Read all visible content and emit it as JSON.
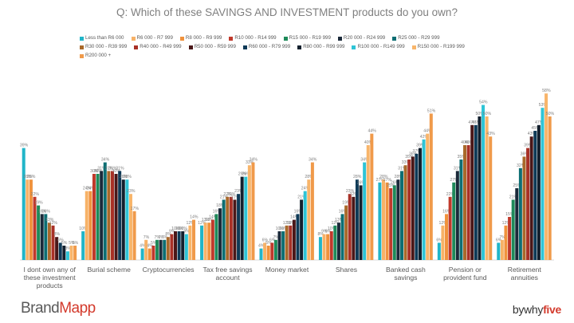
{
  "chart_data": {
    "type": "bar",
    "title": "Q: Which of these SAVINGS AND INVESTMENT products do you own?",
    "xlabel": "",
    "ylabel": "",
    "ylim": [
      0,
      60
    ],
    "grid": false,
    "legend_position": "top",
    "value_suffix": "%",
    "categories": [
      [
        "I dont own any of",
        "these investment",
        "products"
      ],
      [
        "Burial scheme"
      ],
      [
        "Cryptocurrencies"
      ],
      [
        "Tax free savings",
        "account"
      ],
      [
        "Money market"
      ],
      [
        "Shares"
      ],
      [
        "Banked cash",
        "savings"
      ],
      [
        "Pension or",
        "provident fund"
      ],
      [
        "Retirement",
        "annuities"
      ]
    ],
    "series": [
      {
        "name": "Less than R6 000",
        "color": "#21b5c8",
        "values": [
          39,
          10,
          4,
          12,
          4,
          8,
          27,
          6,
          6
        ]
      },
      {
        "name": "R6 000 - R7 999",
        "color": "#f7b267",
        "values": [
          28,
          24,
          7,
          13,
          6,
          9,
          28,
          12,
          7
        ]
      },
      {
        "name": "R8 000 - R9 999",
        "color": "#f0923c",
        "values": [
          28,
          24,
          4,
          13,
          5,
          9,
          27,
          16,
          12
        ]
      },
      {
        "name": "R10 000 - R14 999",
        "color": "#c0392b",
        "values": [
          22,
          30,
          5,
          14,
          6,
          10,
          25,
          22,
          15
        ]
      },
      {
        "name": "R15 000 - R19 999",
        "color": "#1e8a5a",
        "values": [
          19,
          30,
          7,
          16,
          7,
          12,
          26,
          27,
          21
        ]
      },
      {
        "name": "R20 000 - R24 999",
        "color": "#1b2a3a",
        "values": [
          16,
          31,
          7,
          18,
          10,
          13,
          28,
          31,
          25
        ]
      },
      {
        "name": "R25 000 - R29 999",
        "color": "#0d6e73",
        "values": [
          16,
          34,
          7,
          21,
          10,
          16,
          31,
          35,
          32
        ]
      },
      {
        "name": "R30 000 - R39 999",
        "color": "#a9692a",
        "values": [
          13,
          31,
          8,
          22,
          12,
          19,
          33,
          40,
          36
        ]
      },
      {
        "name": "R40 000 - R49 999",
        "color": "#a83026",
        "values": [
          12,
          31,
          9,
          22,
          12,
          23,
          35,
          40,
          39
        ]
      },
      {
        "name": "R50 000 - R59 999",
        "color": "#4a1718",
        "values": [
          8,
          30,
          10,
          21,
          14,
          22,
          36,
          47,
          43
        ]
      },
      {
        "name": "R60 000 - R79 999",
        "color": "#0e3a57",
        "values": [
          6,
          31,
          10,
          23,
          16,
          28,
          37,
          47,
          45
        ]
      },
      {
        "name": "R80 000 - R99 999",
        "color": "#12202e",
        "values": [
          5,
          28,
          10,
          29,
          21,
          26,
          39,
          50,
          47
        ]
      },
      {
        "name": "R100 000 - R149 999",
        "color": "#2ec4d6",
        "values": [
          3,
          28,
          9,
          29,
          24,
          34,
          42,
          54,
          53
        ]
      },
      {
        "name": "R150 000 - R199 999",
        "color": "#f8b56a",
        "values": [
          5,
          23,
          12,
          33,
          28,
          40,
          44,
          50,
          58
        ]
      },
      {
        "name": "R200 000 +",
        "color": "#f09a4a",
        "values": [
          5,
          17,
          14,
          34,
          34,
          44,
          51,
          43,
          50
        ]
      }
    ]
  },
  "branding": {
    "left_logo_a": "Brand",
    "left_logo_b": "Mapp",
    "right_logo_a": "bywhy",
    "right_logo_b": "five"
  }
}
